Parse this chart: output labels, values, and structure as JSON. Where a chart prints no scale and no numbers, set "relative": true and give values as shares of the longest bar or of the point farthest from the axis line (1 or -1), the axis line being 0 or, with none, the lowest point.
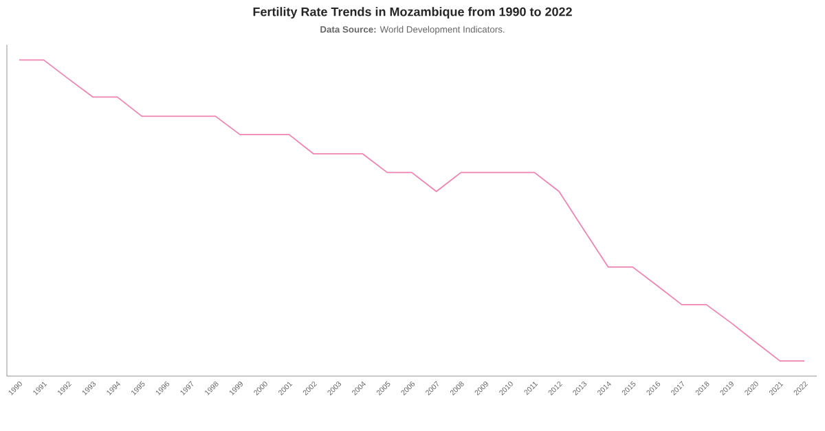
{
  "chart_data": {
    "type": "line",
    "title": "Fertility Rate Trends in Mozambique from 1990 to 2022",
    "subtitle": "**Data Source:** World Development Indicators.",
    "categories": [
      "1990",
      "1991",
      "1992",
      "1993",
      "1994",
      "1995",
      "1996",
      "1997",
      "1998",
      "1999",
      "2000",
      "2001",
      "2002",
      "2003",
      "2004",
      "2005",
      "2006",
      "2007",
      "2008",
      "2009",
      "2010",
      "2011",
      "2012",
      "2013",
      "2014",
      "2015",
      "2016",
      "2017",
      "2018",
      "2019",
      "2020",
      "2021",
      "2022"
    ],
    "relative": true,
    "series": [
      {
        "color": "#ee82b0",
        "values": [
          1,
          1,
          0.941,
          0.883,
          0.883,
          0.822,
          0.822,
          0.822,
          0.822,
          0.764,
          0.764,
          0.764,
          0.703,
          0.703,
          0.703,
          0.644,
          0.644,
          0.584,
          0.644,
          0.644,
          0.644,
          0.644,
          0.584,
          0.464,
          0.345,
          0.345,
          0.286,
          0.226,
          0.226,
          0.169,
          0.108,
          0.048,
          0.048
        ]
      }
    ]
  }
}
